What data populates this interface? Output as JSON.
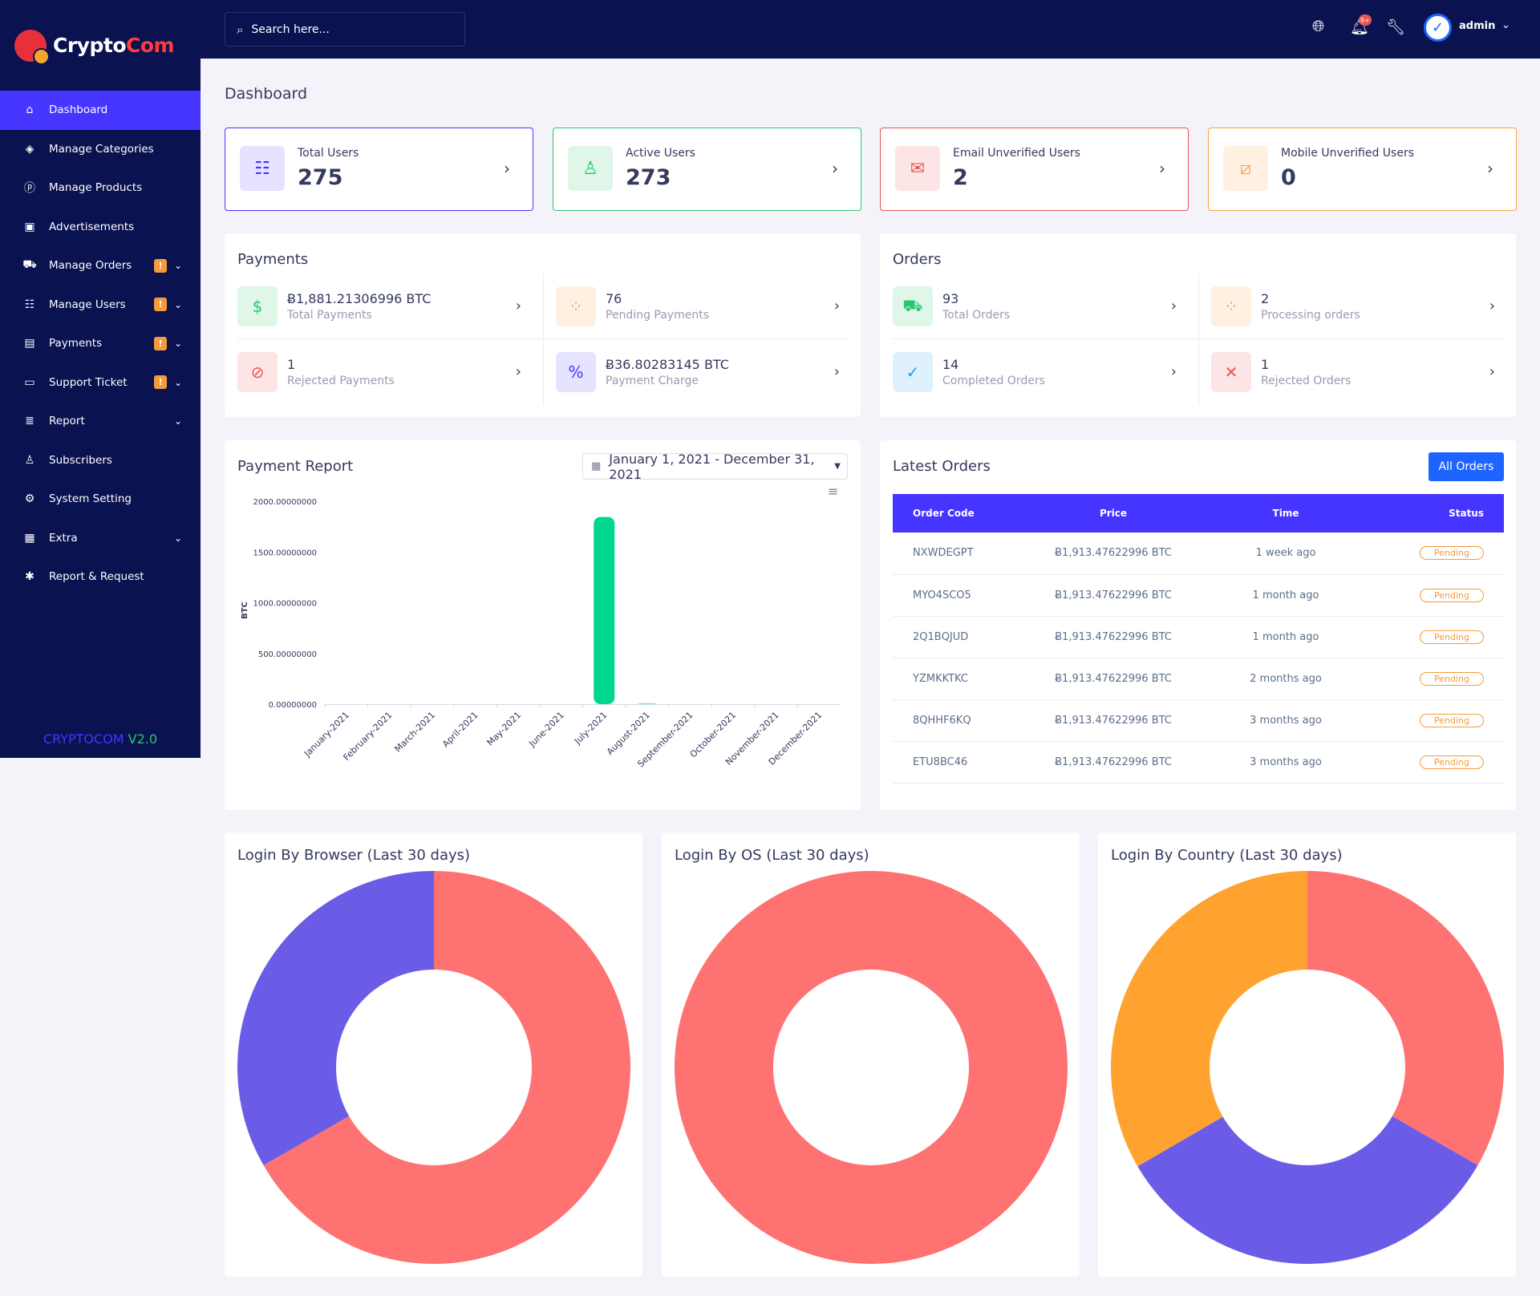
{
  "brand": {
    "name_part1": "Crypto",
    "name_part2": "Com"
  },
  "sidebar": {
    "items": [
      {
        "label": "Dashboard",
        "icon": "home-icon",
        "glyph": "⌂",
        "active": true
      },
      {
        "label": "Manage Categories",
        "icon": "tag-icon",
        "glyph": "◈"
      },
      {
        "label": "Manage Products",
        "icon": "product-icon",
        "glyph": "ⓟ"
      },
      {
        "label": "Advertisements",
        "icon": "ad-icon",
        "glyph": "▣"
      },
      {
        "label": "Manage Orders",
        "icon": "cart-icon",
        "glyph": "⛟",
        "badge": "!",
        "chevron": true
      },
      {
        "label": "Manage Users",
        "icon": "users-icon",
        "glyph": "☷",
        "badge": "!",
        "chevron": true
      },
      {
        "label": "Payments",
        "icon": "payments-icon",
        "glyph": "▤",
        "badge": "!",
        "chevron": true
      },
      {
        "label": "Support Ticket",
        "icon": "ticket-icon",
        "glyph": "▭",
        "badge": "!",
        "chevron": true
      },
      {
        "label": "Report",
        "icon": "report-icon",
        "glyph": "≣",
        "chevron": true
      },
      {
        "label": "Subscribers",
        "icon": "subscribers-icon",
        "glyph": "♙"
      },
      {
        "label": "System Setting",
        "icon": "settings-icon",
        "glyph": "⚙"
      },
      {
        "label": "Extra",
        "icon": "extra-icon",
        "glyph": "▦",
        "chevron": true
      },
      {
        "label": "Report & Request",
        "icon": "bug-icon",
        "glyph": "✱"
      }
    ],
    "version_part1": "CRYPTOCOM",
    "version_part2": "V2.0"
  },
  "topbar": {
    "search_placeholder": "Search here...",
    "notification_count": "9+",
    "admin_name": "admin"
  },
  "page_title": "Dashboard",
  "widgets": [
    {
      "label": "Total Users",
      "value": "275",
      "icon": "users-group-icon",
      "color": "#4634ff",
      "bg": "#e6e3ff"
    },
    {
      "label": "Active Users",
      "value": "273",
      "icon": "user-check-icon",
      "color": "#28c76f",
      "bg": "#dff6e9"
    },
    {
      "label": "Email Unverified Users",
      "value": "2",
      "icon": "envelope-icon",
      "color": "#ea5455",
      "bg": "#fde5e5"
    },
    {
      "label": "Mobile Unverified Users",
      "value": "0",
      "icon": "mobile-slash-icon",
      "color": "#ff9f43",
      "bg": "#fff0e1"
    }
  ],
  "payments": {
    "title": "Payments",
    "items": [
      {
        "value": "Ƀ1,881.21306996 BTC",
        "label": "Total Payments",
        "icon": "hand-money-icon",
        "color": "#28c76f",
        "bg": "#dff6e9"
      },
      {
        "value": "76",
        "label": "Pending Payments",
        "icon": "spinner-icon",
        "color": "#ff9f43",
        "bg": "#fff0e1"
      },
      {
        "value": "1",
        "label": "Rejected Payments",
        "icon": "ban-icon",
        "color": "#ea5455",
        "bg": "#fde5e5"
      },
      {
        "value": "Ƀ36.80283145 BTC",
        "label": "Payment Charge",
        "icon": "percent-icon",
        "color": "#4634ff",
        "bg": "#e6e3ff"
      }
    ]
  },
  "orders": {
    "title": "Orders",
    "items": [
      {
        "value": "93",
        "label": "Total Orders",
        "icon": "cart-icon",
        "color": "#28c76f",
        "bg": "#dff6e9"
      },
      {
        "value": "2",
        "label": "Processing orders",
        "icon": "spinner-icon",
        "color": "#ff9f43",
        "bg": "#fff0e1"
      },
      {
        "value": "14",
        "label": "Completed Orders",
        "icon": "check-circle-icon",
        "color": "#1e9ff2",
        "bg": "#def1fd"
      },
      {
        "value": "1",
        "label": "Rejected Orders",
        "icon": "times-circle-icon",
        "color": "#ea5455",
        "bg": "#fde5e5"
      }
    ]
  },
  "payment_report": {
    "title": "Payment Report",
    "date_range": "January 1, 2021 - December 31, 2021"
  },
  "chart_data": [
    {
      "type": "bar",
      "ylabel": "BTC",
      "categories": [
        "January-2021",
        "February-2021",
        "March-2021",
        "April-2021",
        "May-2021",
        "June-2021",
        "July-2021",
        "August-2021",
        "September-2021",
        "October-2021",
        "November-2021",
        "December-2021"
      ],
      "values": [
        0,
        0,
        0,
        0,
        0,
        0,
        1845,
        5,
        0,
        0,
        0,
        0
      ],
      "yticks": [
        "2000.00000000",
        "1500.00000000",
        "1000.00000000",
        "500.00000000",
        "0.00000000"
      ],
      "ylim": [
        0,
        2000
      ],
      "colors": [
        "#00d68f"
      ]
    },
    {
      "type": "pie",
      "title": "Login By Browser (Last 30 days)",
      "values": [
        66.7,
        33.3
      ],
      "colors": [
        "#ff7272",
        "#6b5ce7"
      ]
    },
    {
      "type": "pie",
      "title": "Login By OS (Last 30 days)",
      "values": [
        100
      ],
      "colors": [
        "#ff7272"
      ]
    },
    {
      "type": "pie",
      "title": "Login By Country (Last 30 days)",
      "values": [
        33.3,
        33.3,
        33.4
      ],
      "colors": [
        "#ff7272",
        "#6b5ce7",
        "#ffa22f"
      ]
    }
  ],
  "latest_orders": {
    "title": "Latest Orders",
    "button_label": "All Orders",
    "columns": [
      "Order Code",
      "Price",
      "Time",
      "Status"
    ],
    "rows": [
      [
        "NXWDEGPT",
        "Ƀ1,913.47622996 BTC",
        "1 week ago",
        "Pending"
      ],
      [
        "MYO4SCO5",
        "Ƀ1,913.47622996 BTC",
        "1 month ago",
        "Pending"
      ],
      [
        "2Q1BQJUD",
        "Ƀ1,913.47622996 BTC",
        "1 month ago",
        "Pending"
      ],
      [
        "YZMKKTKC",
        "Ƀ1,913.47622996 BTC",
        "2 months ago",
        "Pending"
      ],
      [
        "8QHHF6KQ",
        "Ƀ1,913.47622996 BTC",
        "3 months ago",
        "Pending"
      ],
      [
        "ETU8BC46",
        "Ƀ1,913.47622996 BTC",
        "3 months ago",
        "Pending"
      ]
    ]
  }
}
